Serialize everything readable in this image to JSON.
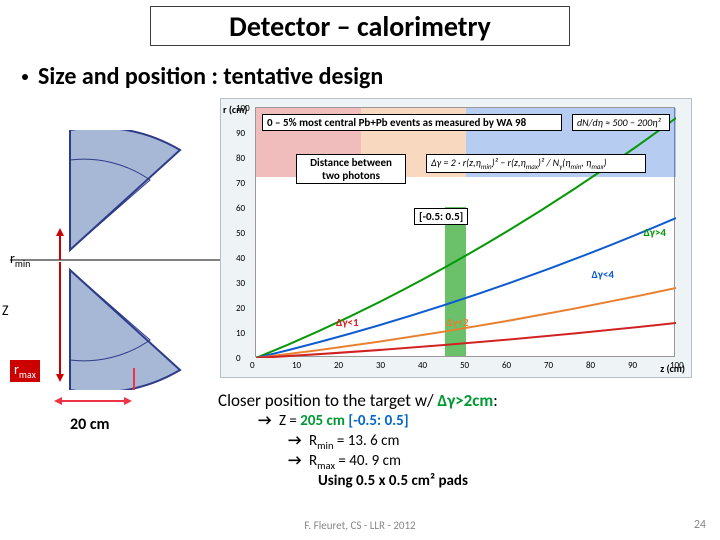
{
  "title": "Detector – calorimetry",
  "bullet": "Size and position : tentative design",
  "schematic": {
    "rmin_label_html": "r<sub>min</sub>",
    "rmax_label_html": "r<sub>max</sub>",
    "z_label": "Z",
    "width_label": "20 cm",
    "wedge_fill": "#a7b7d6",
    "wedge_stroke": "#2d3c88"
  },
  "chart": {
    "y_axis_label": "r (cm)",
    "x_axis_label": "z (cm)",
    "ylim": [
      0,
      100
    ],
    "ytick_step": 10,
    "xlim": [
      0,
      100
    ],
    "xtick_step": 10,
    "panel_bg": "#eef3f6",
    "plot_bg": "#ffffff",
    "note_top": "0 – 5% most central Pb+Pb events as measured by WA 98",
    "note_formula_img_alt": "dN/dη ≈ 500 − 200η²",
    "note_dist": "Distance between two photons",
    "eta_box": "[-0.5: 0.5]",
    "dg_labels": [
      {
        "text": "Δγ>4",
        "color": "#069806"
      },
      {
        "text": "Δγ<4",
        "color": "#0d5bd0"
      },
      {
        "text": "Δγ<2",
        "color": "#e98030"
      },
      {
        "text": "Δγ<1",
        "color": "#d02222"
      }
    ],
    "bands": [
      {
        "color": "#d02222",
        "z_from": 0,
        "z_to": 25
      },
      {
        "color": "#e98030",
        "z_from": 25,
        "z_to": 50
      },
      {
        "color": "#0d5bd0",
        "z_from": 50,
        "z_to": 100
      }
    ],
    "green_col": {
      "color": "#069806",
      "z_from": 45,
      "z_to": 50
    }
  },
  "bottom": {
    "closer_prefix": "Closer position to the target w/ ",
    "closer_highlight": "Δγ>2cm",
    "closer_suffix": ":",
    "line_a_prefix": "Z = ",
    "line_a_value": "205 cm",
    "line_a_range": " [-0.5: 0.5]",
    "line_b_prefix": "R",
    "line_b_sub": "min",
    "line_b_value": " = 13. 6 cm",
    "line_c_prefix": "R",
    "line_c_sub": "max",
    "line_c_value": " = 40. 9 cm",
    "line_d": "Using 0.5 x 0.5 cm² pads"
  },
  "footer": "F. Fleuret, CS - LLR - 2012",
  "page": "24"
}
